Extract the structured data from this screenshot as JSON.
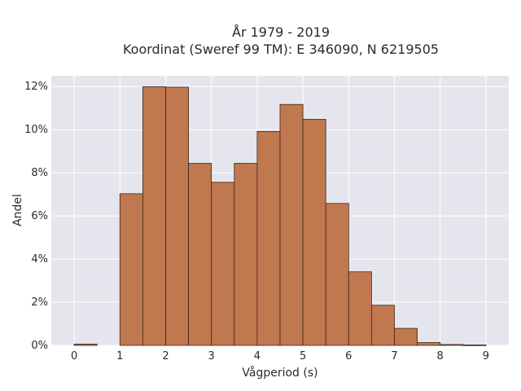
{
  "chart_data": {
    "type": "bar",
    "title": "År 1979 - 2019",
    "subtitle": "Koordinat (Sweref 99 TM): E 346090, N 6219505",
    "xlabel": "Vågperiod (s)",
    "ylabel": "Andel",
    "xlim": [
      -0.5,
      9.5
    ],
    "ylim": [
      0,
      0.125
    ],
    "x_ticks": [
      0,
      1,
      2,
      3,
      4,
      5,
      6,
      7,
      8,
      9
    ],
    "y_ticks": [
      0,
      0.02,
      0.04,
      0.06,
      0.08,
      0.1,
      0.12
    ],
    "y_tick_labels": [
      "0%",
      "2%",
      "4%",
      "6%",
      "8%",
      "10%",
      "12%"
    ],
    "grid": true,
    "bar_color": "#c0784f",
    "edge_color": "#3d2618",
    "plot_background": "#e5e5ee",
    "bins": [
      {
        "x0": 0.0,
        "x1": 0.5,
        "value": 0.0006
      },
      {
        "x0": 0.5,
        "x1": 1.0,
        "value": 0.0
      },
      {
        "x0": 1.0,
        "x1": 1.5,
        "value": 0.0703
      },
      {
        "x0": 1.5,
        "x1": 2.0,
        "value": 0.1199
      },
      {
        "x0": 2.0,
        "x1": 2.5,
        "value": 0.1197
      },
      {
        "x0": 2.5,
        "x1": 3.0,
        "value": 0.0844
      },
      {
        "x0": 3.0,
        "x1": 3.5,
        "value": 0.0756
      },
      {
        "x0": 3.5,
        "x1": 4.0,
        "value": 0.0844
      },
      {
        "x0": 4.0,
        "x1": 4.5,
        "value": 0.0992
      },
      {
        "x0": 4.5,
        "x1": 5.0,
        "value": 0.1117
      },
      {
        "x0": 5.0,
        "x1": 5.5,
        "value": 0.1048
      },
      {
        "x0": 5.5,
        "x1": 6.0,
        "value": 0.0658
      },
      {
        "x0": 6.0,
        "x1": 6.5,
        "value": 0.0341
      },
      {
        "x0": 6.5,
        "x1": 7.0,
        "value": 0.0186
      },
      {
        "x0": 7.0,
        "x1": 7.5,
        "value": 0.0079
      },
      {
        "x0": 7.5,
        "x1": 8.0,
        "value": 0.0013
      },
      {
        "x0": 8.0,
        "x1": 8.5,
        "value": 0.0004
      },
      {
        "x0": 8.5,
        "x1": 9.0,
        "value": 0.0002
      }
    ]
  }
}
